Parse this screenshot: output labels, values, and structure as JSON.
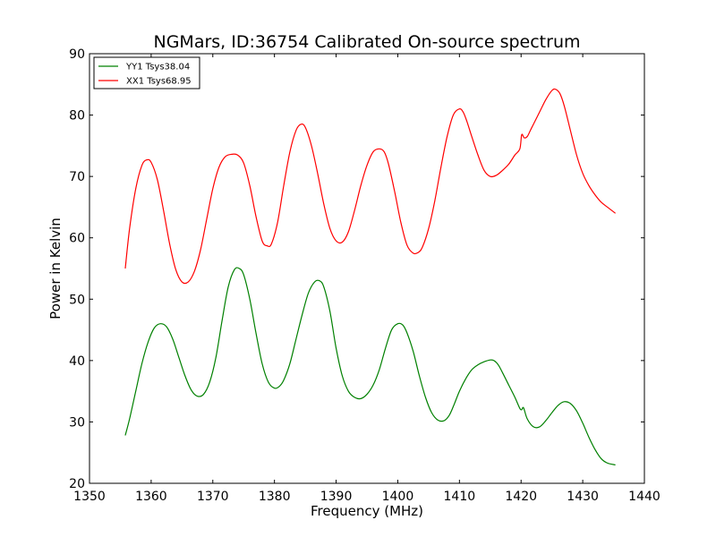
{
  "chart_data": {
    "type": "line",
    "title": "NGMars, ID:36754 Calibrated On-source spectrum",
    "xlabel": "Frequency (MHz)",
    "ylabel": "Power in Kelvin",
    "xlim": [
      1350,
      1440
    ],
    "ylim": [
      20,
      90
    ],
    "xticks": [
      1350,
      1360,
      1370,
      1380,
      1390,
      1400,
      1410,
      1420,
      1430,
      1440
    ],
    "yticks": [
      20,
      30,
      40,
      50,
      60,
      70,
      80,
      90
    ],
    "grid": false,
    "legend_position": "top-left",
    "series": [
      {
        "name": "YY1 Tsys38.04",
        "color": "#008000",
        "x": [
          1355.8,
          1356.5,
          1357.5,
          1358.5,
          1359.5,
          1360.5,
          1361.5,
          1362.5,
          1363.5,
          1364.5,
          1365.5,
          1366.5,
          1367.5,
          1368.5,
          1369.5,
          1370.5,
          1371.5,
          1372.5,
          1373.5,
          1374.3,
          1375.0,
          1376.0,
          1377.0,
          1378.0,
          1379.0,
          1380.0,
          1380.8,
          1381.5,
          1382.5,
          1383.5,
          1384.5,
          1385.5,
          1386.5,
          1387.3,
          1388.0,
          1389.0,
          1390.0,
          1391.0,
          1392.0,
          1393.0,
          1394.0,
          1395.0,
          1396.0,
          1397.0,
          1398.0,
          1399.0,
          1400.0,
          1400.8,
          1401.5,
          1402.5,
          1403.5,
          1404.5,
          1405.5,
          1406.5,
          1407.5,
          1408.3,
          1409.0,
          1410.0,
          1411.0,
          1412.0,
          1413.0,
          1414.0,
          1415.0,
          1415.6,
          1416.3,
          1417.0,
          1418.0,
          1419.0,
          1419.8,
          1420.1,
          1420.4,
          1421.0,
          1422.0,
          1423.0,
          1424.0,
          1425.0,
          1426.0,
          1427.0,
          1428.0,
          1429.0,
          1430.0,
          1431.0,
          1432.0,
          1433.0,
          1434.0,
          1435.3
        ],
        "values": [
          27.8,
          30.5,
          35.0,
          39.5,
          43.0,
          45.3,
          46.0,
          45.5,
          43.5,
          40.5,
          37.5,
          35.2,
          34.2,
          34.5,
          36.5,
          40.5,
          46.5,
          52.0,
          54.8,
          55.0,
          54.0,
          50.0,
          44.5,
          39.5,
          36.5,
          35.5,
          35.8,
          36.8,
          39.5,
          43.5,
          47.5,
          51.0,
          52.8,
          53.0,
          52.0,
          48.0,
          42.0,
          37.5,
          35.0,
          34.0,
          33.8,
          34.5,
          36.0,
          38.5,
          42.0,
          45.0,
          46.0,
          45.8,
          44.5,
          41.5,
          37.5,
          34.0,
          31.5,
          30.3,
          30.2,
          31.0,
          32.5,
          35.0,
          37.0,
          38.5,
          39.3,
          39.8,
          40.1,
          40.0,
          39.3,
          38.0,
          36.0,
          34.0,
          32.2,
          32.0,
          32.3,
          30.5,
          29.2,
          29.2,
          30.2,
          31.5,
          32.7,
          33.3,
          33.0,
          31.8,
          29.8,
          27.5,
          25.5,
          24.0,
          23.3,
          23.0
        ]
      },
      {
        "name": "XX1 Tsys68.95",
        "color": "#ff0000",
        "x": [
          1355.8,
          1356.5,
          1357.5,
          1358.5,
          1359.3,
          1360.0,
          1361.0,
          1362.0,
          1363.0,
          1364.0,
          1365.0,
          1366.0,
          1367.0,
          1368.0,
          1369.0,
          1370.0,
          1371.0,
          1372.0,
          1373.0,
          1374.0,
          1375.0,
          1376.0,
          1377.0,
          1378.0,
          1378.8,
          1379.5,
          1380.5,
          1381.5,
          1382.5,
          1383.5,
          1384.3,
          1385.0,
          1386.0,
          1387.0,
          1388.0,
          1389.0,
          1390.0,
          1391.0,
          1392.0,
          1393.0,
          1394.0,
          1395.0,
          1396.0,
          1397.0,
          1397.8,
          1398.5,
          1399.5,
          1400.5,
          1401.5,
          1402.5,
          1403.3,
          1404.0,
          1405.0,
          1406.0,
          1407.0,
          1408.0,
          1409.0,
          1410.0,
          1410.6,
          1411.2,
          1412.0,
          1413.0,
          1414.0,
          1415.0,
          1416.0,
          1417.0,
          1418.0,
          1419.0,
          1419.8,
          1420.1,
          1420.5,
          1421.0,
          1421.5,
          1422.0,
          1423.0,
          1424.0,
          1425.0,
          1425.6,
          1426.3,
          1427.0,
          1428.0,
          1429.0,
          1430.0,
          1431.0,
          1432.0,
          1433.0,
          1434.0,
          1435.3
        ],
        "values": [
          55.0,
          61.5,
          68.0,
          71.8,
          72.7,
          72.3,
          69.5,
          64.5,
          59.0,
          54.8,
          52.8,
          52.8,
          54.5,
          58.0,
          63.0,
          68.0,
          71.5,
          73.2,
          73.6,
          73.5,
          72.2,
          68.5,
          63.5,
          59.5,
          58.7,
          59.0,
          62.5,
          68.5,
          74.0,
          77.5,
          78.5,
          78.0,
          75.0,
          70.5,
          65.5,
          61.5,
          59.5,
          59.3,
          61.0,
          64.5,
          68.5,
          71.8,
          74.0,
          74.5,
          74.0,
          72.0,
          67.5,
          62.5,
          58.8,
          57.5,
          57.6,
          58.5,
          61.5,
          66.0,
          71.5,
          76.5,
          80.0,
          81.0,
          80.5,
          79.0,
          76.5,
          73.5,
          71.0,
          70.0,
          70.2,
          71.0,
          72.0,
          73.5,
          74.5,
          76.8,
          76.3,
          76.5,
          77.5,
          78.5,
          80.5,
          82.5,
          84.0,
          84.2,
          83.5,
          81.5,
          77.5,
          73.5,
          70.5,
          68.5,
          67.0,
          65.8,
          65.0,
          64.0
        ]
      }
    ]
  }
}
